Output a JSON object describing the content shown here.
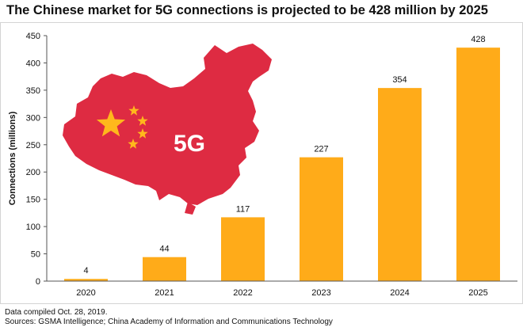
{
  "title": "The Chinese market for 5G connections is projected to be 428 million by 2025",
  "map_label": "5G",
  "colors": {
    "bar": "#FFAB19",
    "map": "#DE2B42",
    "star": "#FFB81C",
    "axis": "#555555",
    "text": "#111111"
  },
  "icons": {
    "map": "china-map-icon",
    "stars": "flag-stars-icon"
  },
  "chart_data": {
    "type": "bar",
    "title": "The Chinese market for 5G connections is projected to be 428 million by 2025",
    "categories": [
      "2020",
      "2021",
      "2022",
      "2023",
      "2024",
      "2025"
    ],
    "values": [
      4,
      44,
      117,
      227,
      354,
      428
    ],
    "data_labels": [
      "4",
      "44",
      "117",
      "227",
      "354",
      "428"
    ],
    "xlabel": "",
    "ylabel": "Connections (millions)",
    "ylim": [
      0,
      450
    ],
    "yticks": [
      0,
      50,
      100,
      150,
      200,
      250,
      300,
      350,
      400,
      450
    ],
    "grid": false,
    "legend": "none"
  },
  "footer": {
    "line1": "Data compiled Oct. 28, 2019.",
    "line2": "Sources: GSMA Intelligence; China Academy of Information and Communications Technology"
  }
}
